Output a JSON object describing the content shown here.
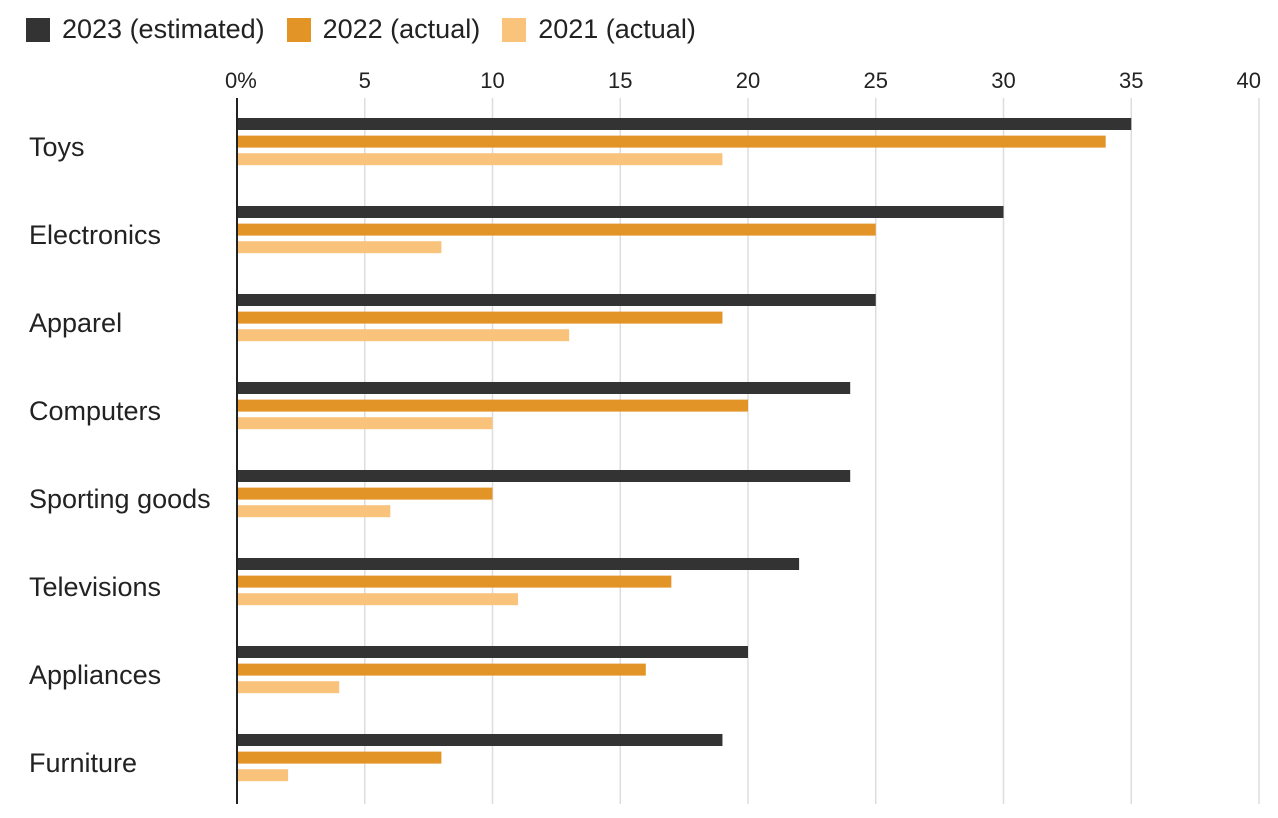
{
  "chart_data": {
    "type": "bar",
    "orientation": "horizontal",
    "title": "",
    "xlabel": "",
    "ylabel": "",
    "xlim": [
      0,
      40
    ],
    "x_ticks": [
      0,
      5,
      10,
      15,
      20,
      25,
      30,
      35,
      40
    ],
    "x_tick_labels": [
      "0%",
      "5",
      "10",
      "15",
      "20",
      "25",
      "30",
      "35",
      "40"
    ],
    "grid": true,
    "legend_position": "top-left",
    "categories": [
      "Toys",
      "Electronics",
      "Apparel",
      "Computers",
      "Sporting goods",
      "Televisions",
      "Appliances",
      "Furniture"
    ],
    "series": [
      {
        "name": "2023 (estimated)",
        "color": "#333333",
        "values": [
          35,
          30,
          25,
          24,
          24,
          22,
          20,
          19
        ]
      },
      {
        "name": "2022 (actual)",
        "color": "#e39426",
        "values": [
          34,
          25,
          19,
          20,
          10,
          17,
          16,
          8
        ]
      },
      {
        "name": "2021 (actual)",
        "color": "#f9c37c",
        "values": [
          19,
          8,
          13,
          10,
          6,
          11,
          4,
          2
        ]
      }
    ]
  }
}
